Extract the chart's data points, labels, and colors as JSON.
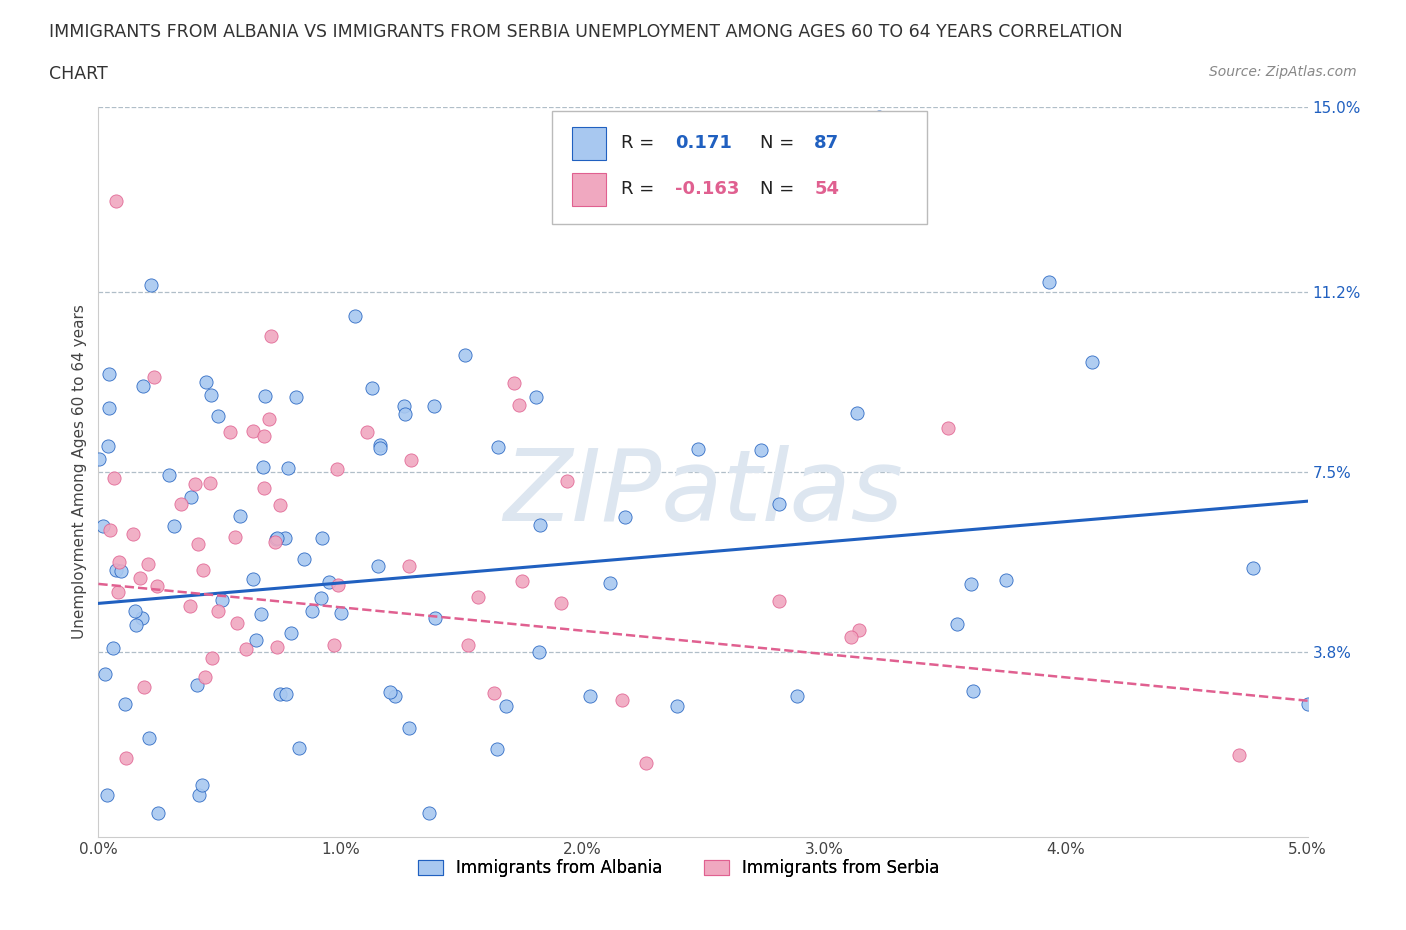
{
  "title_line1": "IMMIGRANTS FROM ALBANIA VS IMMIGRANTS FROM SERBIA UNEMPLOYMENT AMONG AGES 60 TO 64 YEARS CORRELATION",
  "title_line2": "CHART",
  "source_text": "Source: ZipAtlas.com",
  "ylabel": "Unemployment Among Ages 60 to 64 years",
  "xlim": [
    0.0,
    0.05
  ],
  "ylim": [
    0.0,
    0.15
  ],
  "xtick_labels": [
    "0.0%",
    "1.0%",
    "2.0%",
    "3.0%",
    "4.0%",
    "5.0%"
  ],
  "xtick_values": [
    0.0,
    0.01,
    0.02,
    0.03,
    0.04,
    0.05
  ],
  "ytick_labels": [
    "3.8%",
    "7.5%",
    "11.2%",
    "15.0%"
  ],
  "ytick_values": [
    0.038,
    0.075,
    0.112,
    0.15
  ],
  "albania_color": "#a8c8f0",
  "serbia_color": "#f0a8c0",
  "albania_R": 0.171,
  "albania_N": 87,
  "serbia_R": -0.163,
  "serbia_N": 54,
  "albania_line_color": "#2060c0",
  "serbia_line_color": "#e06090",
  "watermark_text": "ZIPatlas",
  "watermark_color": "#dde6f0",
  "legend_label_albania": "Immigrants from Albania",
  "legend_label_serbia": "Immigrants from Serbia",
  "background_color": "#ffffff",
  "grid_color": "#b0bec8",
  "albania_line_y0": 0.048,
  "albania_line_y1": 0.069,
  "serbia_line_y0": 0.052,
  "serbia_line_y1": 0.028
}
